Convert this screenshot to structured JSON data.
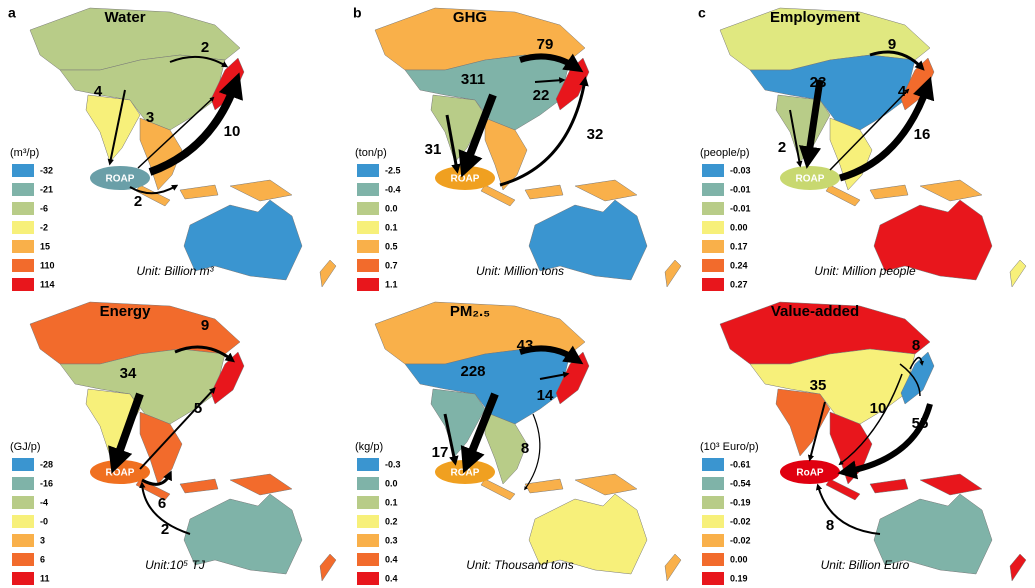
{
  "panels": [
    {
      "letter": "a",
      "title": "Water",
      "legend_title": "(m³/p)",
      "legend": [
        {
          "label": "-32",
          "color": "#3a95d0"
        },
        {
          "label": "-21",
          "color": "#7fb3a8"
        },
        {
          "label": "-6",
          "color": "#b8cc88"
        },
        {
          "label": "-2",
          "color": "#f7f07a"
        },
        {
          "label": "15",
          "color": "#f9b04a"
        },
        {
          "label": "110",
          "color": "#f26b2c"
        },
        {
          "label": "114",
          "color": "#e8161c"
        }
      ],
      "flows": [
        "2",
        "4",
        "3",
        "10",
        "2"
      ],
      "hub": "ROAP",
      "hub_color": "#6a9fa8",
      "unit": "Unit: Billion m³"
    },
    {
      "letter": "b",
      "title": "GHG",
      "legend_title": "(ton/p)",
      "legend": [
        {
          "label": "-2.5",
          "color": "#3a95d0"
        },
        {
          "label": "-0.4",
          "color": "#7fb3a8"
        },
        {
          "label": "0.0",
          "color": "#b8cc88"
        },
        {
          "label": "0.1",
          "color": "#f7f07a"
        },
        {
          "label": "0.5",
          "color": "#f9b04a"
        },
        {
          "label": "0.7",
          "color": "#f26b2c"
        },
        {
          "label": "1.1",
          "color": "#e8161c"
        }
      ],
      "flows": [
        "79",
        "311",
        "22",
        "31",
        "32"
      ],
      "hub": "ROAP",
      "hub_color": "#f0a020",
      "unit": "Unit: Million tons"
    },
    {
      "letter": "c",
      "title": "Employment",
      "legend_title": "(people/p)",
      "legend": [
        {
          "label": "-0.03",
          "color": "#3a95d0"
        },
        {
          "label": "-0.01",
          "color": "#7fb3a8"
        },
        {
          "label": "-0.01",
          "color": "#b8cc88"
        },
        {
          "label": "0.00",
          "color": "#f7f07a"
        },
        {
          "label": "0.17",
          "color": "#f9b04a"
        },
        {
          "label": "0.24",
          "color": "#f26b2c"
        },
        {
          "label": "0.27",
          "color": "#e8161c"
        }
      ],
      "flows": [
        "9",
        "23",
        "4",
        "2",
        "16"
      ],
      "hub": "ROAP",
      "hub_color": "#c8d870",
      "unit": "Unit: Million people"
    },
    {
      "title": "Energy",
      "legend_title": "(GJ/p)",
      "legend": [
        {
          "label": "-28",
          "color": "#3a95d0"
        },
        {
          "label": "-16",
          "color": "#7fb3a8"
        },
        {
          "label": "-4",
          "color": "#b8cc88"
        },
        {
          "label": "-0",
          "color": "#f7f07a"
        },
        {
          "label": "3",
          "color": "#f9b04a"
        },
        {
          "label": "6",
          "color": "#f26b2c"
        },
        {
          "label": "11",
          "color": "#e8161c"
        }
      ],
      "flows": [
        "9",
        "34",
        "5",
        "6",
        "2"
      ],
      "hub": "ROAP",
      "hub_color": "#f07020",
      "unit": "Unit:10⁵ TJ"
    },
    {
      "title": "PM₂.₅",
      "legend_title": "(kg/p)",
      "legend": [
        {
          "label": "-0.3",
          "color": "#3a95d0"
        },
        {
          "label": "0.0",
          "color": "#7fb3a8"
        },
        {
          "label": "0.1",
          "color": "#b8cc88"
        },
        {
          "label": "0.2",
          "color": "#f7f07a"
        },
        {
          "label": "0.3",
          "color": "#f9b04a"
        },
        {
          "label": "0.4",
          "color": "#f26b2c"
        },
        {
          "label": "0.4",
          "color": "#e8161c"
        }
      ],
      "flows": [
        "43",
        "228",
        "14",
        "17",
        "8"
      ],
      "hub": "ROAP",
      "hub_color": "#f0a020",
      "unit": "Unit: Thousand tons"
    },
    {
      "title": "Value-added",
      "legend_title": "(10³ Euro/p)",
      "legend": [
        {
          "label": "-0.61",
          "color": "#3a95d0"
        },
        {
          "label": "-0.54",
          "color": "#7fb3a8"
        },
        {
          "label": "-0.19",
          "color": "#b8cc88"
        },
        {
          "label": "-0.02",
          "color": "#f7f07a"
        },
        {
          "label": "-0.02",
          "color": "#f9b04a"
        },
        {
          "label": "0.00",
          "color": "#f26b2c"
        },
        {
          "label": "0.19",
          "color": "#e8161c"
        }
      ],
      "flows": [
        "8",
        "35",
        "10",
        "55",
        "8"
      ],
      "hub": "RoAP",
      "hub_color": "#e00010",
      "unit": "Unit: Billion Euro"
    }
  ]
}
